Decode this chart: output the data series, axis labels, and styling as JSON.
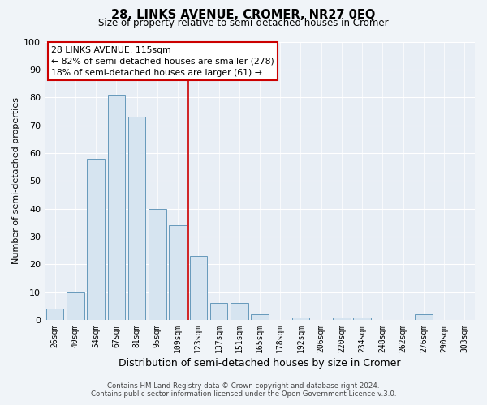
{
  "title": "28, LINKS AVENUE, CROMER, NR27 0EQ",
  "subtitle": "Size of property relative to semi-detached houses in Cromer",
  "xlabel": "Distribution of semi-detached houses by size in Cromer",
  "ylabel": "Number of semi-detached properties",
  "bar_labels": [
    "26sqm",
    "40sqm",
    "54sqm",
    "67sqm",
    "81sqm",
    "95sqm",
    "109sqm",
    "123sqm",
    "137sqm",
    "151sqm",
    "165sqm",
    "178sqm",
    "192sqm",
    "206sqm",
    "220sqm",
    "234sqm",
    "248sqm",
    "262sqm",
    "276sqm",
    "290sqm",
    "303sqm"
  ],
  "bar_values": [
    4,
    10,
    58,
    81,
    73,
    40,
    34,
    23,
    6,
    6,
    2,
    0,
    1,
    0,
    1,
    1,
    0,
    0,
    2,
    0,
    0
  ],
  "bar_color": "#d6e4f0",
  "bar_edge_color": "#6699bb",
  "ylim": [
    0,
    100
  ],
  "yticks": [
    0,
    10,
    20,
    30,
    40,
    50,
    60,
    70,
    80,
    90,
    100
  ],
  "property_line_x": 6.5,
  "property_line_color": "#cc0000",
  "annotation_title": "28 LINKS AVENUE: 115sqm",
  "annotation_line1": "← 82% of semi-detached houses are smaller (278)",
  "annotation_line2": "18% of semi-detached houses are larger (61) →",
  "annotation_box_color": "#cc0000",
  "footer_line1": "Contains HM Land Registry data © Crown copyright and database right 2024.",
  "footer_line2": "Contains public sector information licensed under the Open Government Licence v.3.0.",
  "fig_bg_color": "#f0f4f8",
  "plot_bg_color": "#e8eef5"
}
